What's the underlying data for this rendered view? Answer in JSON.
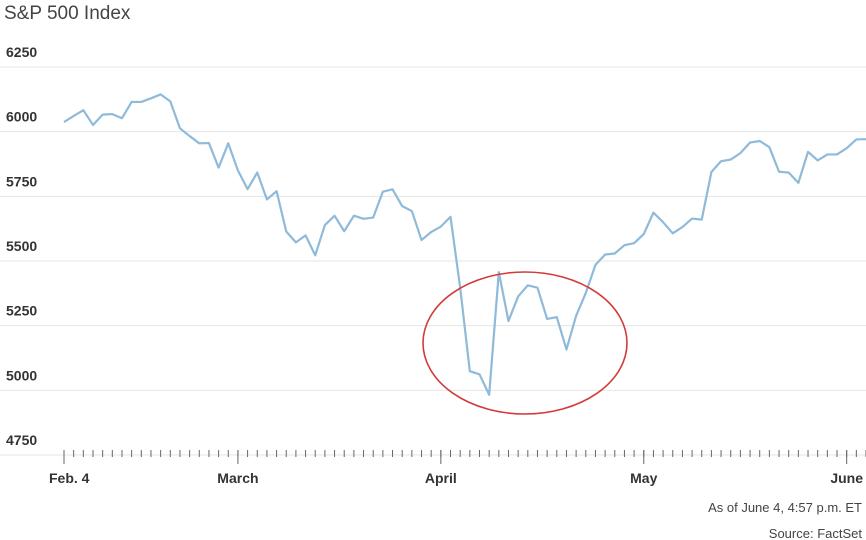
{
  "chart_data": {
    "type": "line",
    "title": "S&P 500 Index",
    "categories": [
      "Feb. 4",
      null,
      null,
      null,
      null,
      null,
      null,
      null,
      null,
      null,
      null,
      null,
      null,
      null,
      null,
      null,
      null,
      null,
      "March",
      null,
      null,
      null,
      null,
      null,
      null,
      null,
      null,
      null,
      null,
      null,
      null,
      null,
      null,
      null,
      null,
      null,
      null,
      null,
      null,
      "April",
      null,
      null,
      null,
      null,
      null,
      null,
      null,
      null,
      null,
      null,
      null,
      null,
      null,
      null,
      null,
      null,
      null,
      null,
      null,
      null,
      "May",
      null,
      null,
      null,
      null,
      null,
      null,
      null,
      null,
      null,
      null,
      null,
      null,
      null,
      null,
      null,
      null,
      null,
      null,
      null,
      null,
      "June",
      null,
      null
    ],
    "values": [
      6037,
      6061,
      6083,
      6026,
      6066,
      6068,
      6052,
      6115,
      6115,
      6129,
      6144,
      6117,
      6013,
      5983,
      5955,
      5956,
      5861,
      5955,
      5850,
      5778,
      5842,
      5738,
      5770,
      5614,
      5572,
      5599,
      5522,
      5639,
      5675,
      5615,
      5675,
      5663,
      5668,
      5768,
      5777,
      5712,
      5693,
      5581,
      5612,
      5633,
      5671,
      5397,
      5074,
      5062,
      4983,
      5457,
      5268,
      5363,
      5406,
      5397,
      5276,
      5283,
      5158,
      5288,
      5376,
      5485,
      5525,
      5529,
      5561,
      5569,
      5604,
      5687,
      5650,
      5607,
      5631,
      5664,
      5660,
      5844,
      5886,
      5892,
      5917,
      5958,
      5964,
      5940,
      5845,
      5842,
      5802,
      5922,
      5889,
      5912,
      5912,
      5936,
      5970,
      5971
    ],
    "color": "#8fbad9",
    "ylim": [
      4750,
      6250
    ],
    "yticks": [
      4750,
      5000,
      5250,
      5500,
      5750,
      6000,
      6250
    ],
    "grid": true,
    "notes": [
      "As of June 4, 4:57 p.m. ET",
      "Source: FactSet"
    ]
  }
}
